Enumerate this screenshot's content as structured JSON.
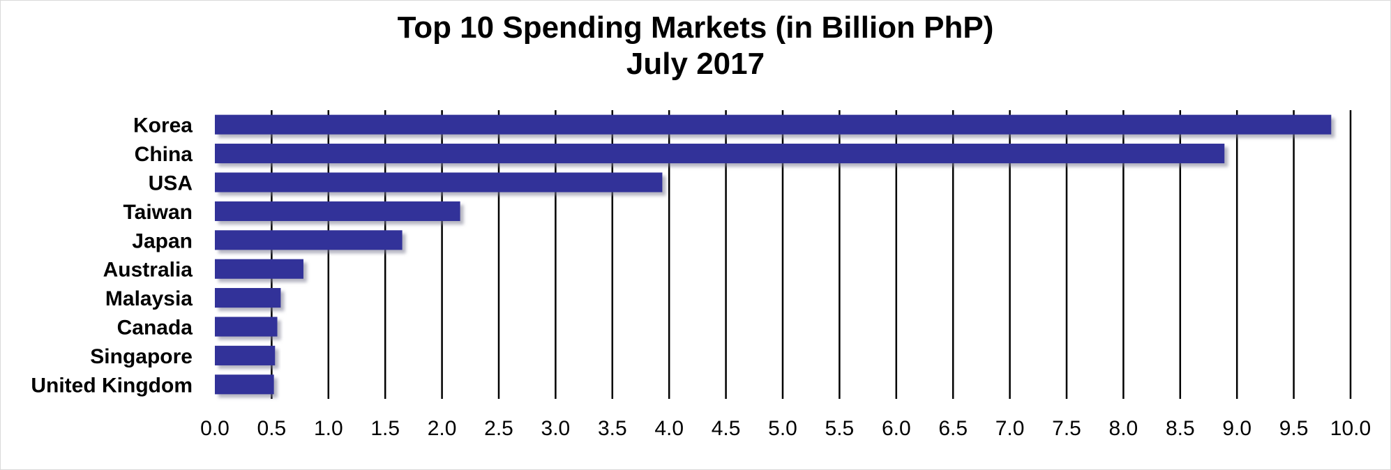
{
  "chart_data": {
    "type": "bar",
    "orientation": "horizontal",
    "title": "Top 10 Spending Markets (in Billion PhP)",
    "subtitle": "July 2017",
    "categories": [
      "Korea",
      "China",
      "USA",
      "Taiwan",
      "Japan",
      "Australia",
      "Malaysia",
      "Canada",
      "Singapore",
      "United Kingdom"
    ],
    "values": [
      9.83,
      8.89,
      3.94,
      2.16,
      1.65,
      0.78,
      0.58,
      0.55,
      0.53,
      0.52
    ],
    "xlim": [
      0,
      10
    ],
    "x_ticks": [
      "0.0",
      "0.5",
      "1.0",
      "1.5",
      "2.0",
      "2.5",
      "3.0",
      "3.5",
      "4.0",
      "4.5",
      "5.0",
      "5.5",
      "6.0",
      "6.5",
      "7.0",
      "7.5",
      "8.0",
      "8.5",
      "9.0",
      "9.5",
      "10.0"
    ],
    "grid": true,
    "legend": "none",
    "colors": {
      "bar": "#333399",
      "bar_shadow": "#b8b8c8",
      "grid": "#000000"
    }
  }
}
